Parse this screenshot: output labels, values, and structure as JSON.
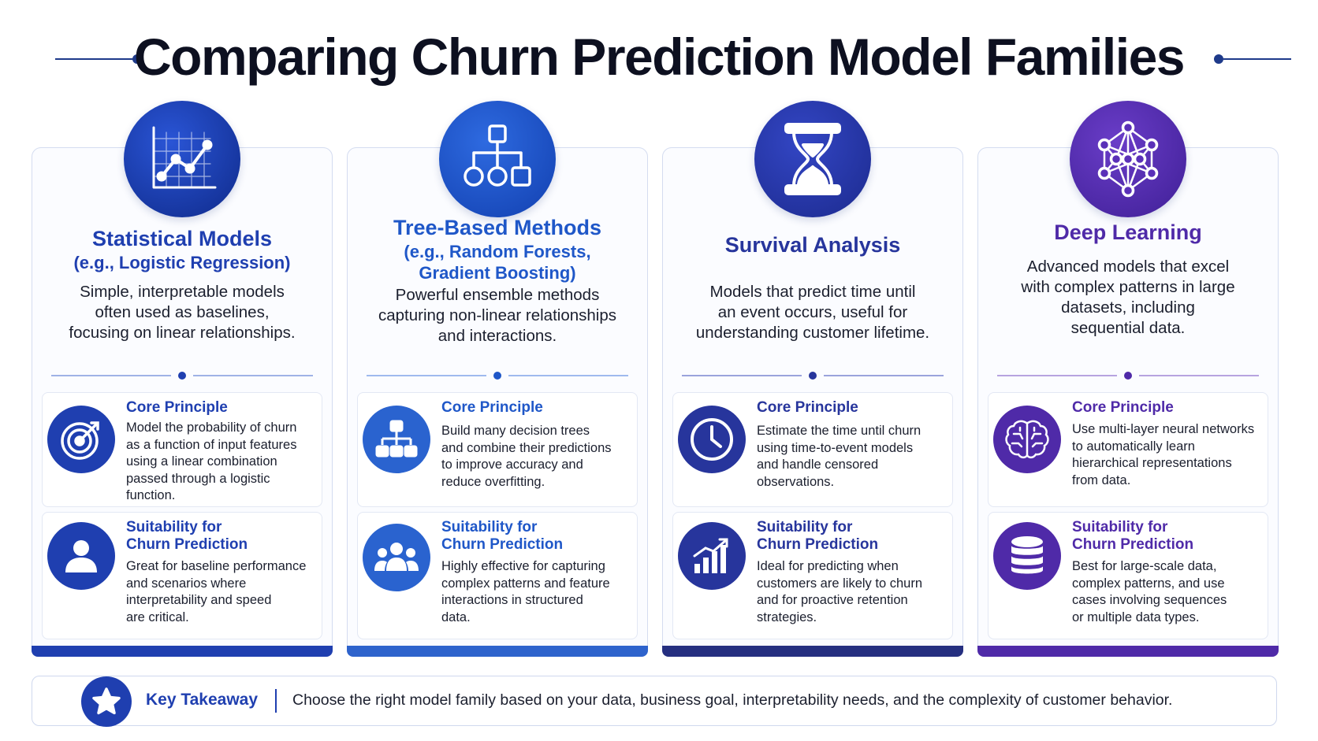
{
  "title": "Comparing Churn Prediction Model Families",
  "cards": [
    {
      "icon": "line-chart-icon",
      "title": "Statistical Models",
      "subtitle": "(e.g., Logistic Regression)",
      "description": [
        "Simple, interpretable models",
        "often used as baselines,",
        "focusing on linear relationships."
      ],
      "color": "#1f3fb0",
      "core": {
        "icon": "target-icon",
        "heading": "Core Principle",
        "text": [
          "Model the probability of churn",
          "as a function of input features",
          "using a linear combination",
          "passed through a logistic",
          "function."
        ]
      },
      "suitability": {
        "icon": "user-icon",
        "heading": [
          "Suitability for",
          "Churn Prediction"
        ],
        "text": [
          "Great for baseline performance",
          "and scenarios where",
          "interpretability and speed",
          "are critical."
        ]
      }
    },
    {
      "icon": "tree-diagram-icon",
      "title": "Tree-Based Methods",
      "subtitle": [
        "(e.g., Random Forests,",
        "Gradient Boosting)"
      ],
      "description": [
        "Powerful ensemble methods",
        "capturing non-linear relationships",
        "and interactions."
      ],
      "color": "#1f57c8",
      "core": {
        "icon": "hierarchy-icon",
        "heading": "Core Principle",
        "text": [
          "Build many decision trees",
          "and combine their predictions",
          "to improve accuracy and",
          "reduce overfitting."
        ]
      },
      "suitability": {
        "icon": "group-icon",
        "heading": [
          "Suitability for",
          "Churn Prediction"
        ],
        "text": [
          "Highly effective for capturing",
          "complex patterns and feature",
          "interactions in structured",
          "data."
        ]
      }
    },
    {
      "icon": "hourglass-icon",
      "title": "Survival Analysis",
      "subtitle": "",
      "description": [
        "Models that predict time until",
        "an event occurs, useful for",
        "understanding customer lifetime."
      ],
      "color": "#27359c",
      "core": {
        "icon": "clock-icon",
        "heading": "Core Principle",
        "text": [
          "Estimate the time until churn",
          "using time-to-event models",
          "and handle censored",
          "observations."
        ]
      },
      "suitability": {
        "icon": "growth-chart-icon",
        "heading": [
          "Suitability for",
          "Churn Prediction"
        ],
        "text": [
          "Ideal for predicting when",
          "customers are likely to churn",
          "and for proactive retention",
          "strategies."
        ]
      }
    },
    {
      "icon": "neural-network-icon",
      "title": "Deep Learning",
      "subtitle": "",
      "description": [
        "Advanced models that excel",
        "with complex patterns in large",
        "datasets, including",
        "sequential data."
      ],
      "color": "#4f2aa8",
      "core": {
        "icon": "brain-icon",
        "heading": "Core Principle",
        "text": [
          "Use multi-layer neural networks",
          "to automatically learn",
          "hierarchical representations",
          "from data."
        ]
      },
      "suitability": {
        "icon": "database-icon",
        "heading": [
          "Suitability for",
          "Churn Prediction"
        ],
        "text": [
          "Best for large-scale data,",
          "complex patterns, and use",
          "cases involving sequences",
          "or multiple data types."
        ]
      }
    }
  ],
  "footer": {
    "icon": "star-icon",
    "label": "Key Takeaway",
    "text": "Choose the right model family based on your data, business goal, interpretability needs, and the complexity of customer behavior."
  }
}
